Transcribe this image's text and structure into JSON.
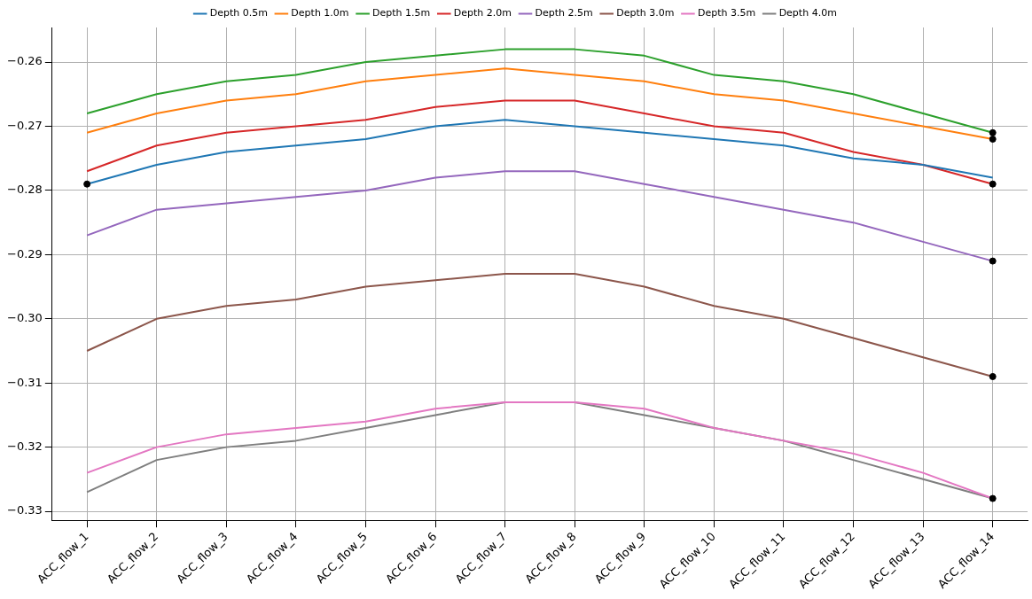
{
  "chart_data": {
    "type": "line",
    "categories": [
      "ACC_flow_1",
      "ACC_flow_2",
      "ACC_flow_3",
      "ACC_flow_4",
      "ACC_flow_5",
      "ACC_flow_6",
      "ACC_flow_7",
      "ACC_flow_8",
      "ACC_flow_9",
      "ACC_flow_10",
      "ACC_flow_11",
      "ACC_flow_12",
      "ACC_flow_13",
      "ACC_flow_14"
    ],
    "series": [
      {
        "name": "Depth 0.5m",
        "color": "#1f77b4",
        "values": [
          -0.279,
          -0.276,
          -0.274,
          -0.273,
          -0.272,
          -0.27,
          -0.269,
          -0.27,
          -0.271,
          -0.272,
          -0.273,
          -0.275,
          -0.276,
          -0.278
        ]
      },
      {
        "name": "Depth 1.0m",
        "color": "#ff7f0e",
        "values": [
          -0.271,
          -0.268,
          -0.266,
          -0.265,
          -0.263,
          -0.262,
          -0.261,
          -0.262,
          -0.263,
          -0.265,
          -0.266,
          -0.268,
          -0.27,
          -0.272
        ]
      },
      {
        "name": "Depth 1.5m",
        "color": "#2ca02c",
        "values": [
          -0.268,
          -0.265,
          -0.263,
          -0.262,
          -0.26,
          -0.259,
          -0.258,
          -0.258,
          -0.259,
          -0.262,
          -0.263,
          -0.265,
          -0.268,
          -0.271
        ]
      },
      {
        "name": "Depth 2.0m",
        "color": "#d62728",
        "values": [
          -0.277,
          -0.273,
          -0.271,
          -0.27,
          -0.269,
          -0.267,
          -0.266,
          -0.266,
          -0.268,
          -0.27,
          -0.271,
          -0.274,
          -0.276,
          -0.279
        ]
      },
      {
        "name": "Depth 2.5m",
        "color": "#9467bd",
        "values": [
          -0.287,
          -0.283,
          -0.282,
          -0.281,
          -0.28,
          -0.278,
          -0.277,
          -0.277,
          -0.279,
          -0.281,
          -0.283,
          -0.285,
          -0.288,
          -0.291
        ]
      },
      {
        "name": "Depth 3.0m",
        "color": "#8c564b",
        "values": [
          -0.305,
          -0.3,
          -0.298,
          -0.297,
          -0.295,
          -0.294,
          -0.293,
          -0.293,
          -0.295,
          -0.298,
          -0.3,
          -0.303,
          -0.306,
          -0.309
        ]
      },
      {
        "name": "Depth 3.5m",
        "color": "#e377c2",
        "values": [
          -0.324,
          -0.32,
          -0.318,
          -0.317,
          -0.316,
          -0.314,
          -0.313,
          -0.313,
          -0.314,
          -0.317,
          -0.319,
          -0.321,
          -0.324,
          -0.328
        ]
      },
      {
        "name": "Depth 4.0m",
        "color": "#7f7f7f",
        "values": [
          -0.327,
          -0.322,
          -0.32,
          -0.319,
          -0.317,
          -0.315,
          -0.313,
          -0.313,
          -0.315,
          -0.317,
          -0.319,
          -0.322,
          -0.325,
          -0.328
        ]
      },
      {
        "type": "scatter",
        "marker": "circle",
        "color": "#000000",
        "x": [
          "ACC_flow_1",
          "ACC_flow_14",
          "ACC_flow_14",
          "ACC_flow_14",
          "ACC_flow_14",
          "ACC_flow_14",
          "ACC_flow_14"
        ],
        "values": [
          -0.279,
          -0.271,
          -0.272,
          -0.279,
          -0.291,
          -0.309,
          -0.328
        ]
      }
    ],
    "ylim": [
      -0.3314,
      -0.2546
    ],
    "yticks": [
      {
        "value": -0.33,
        "label": "−0.33"
      },
      {
        "value": -0.32,
        "label": "−0.32"
      },
      {
        "value": -0.31,
        "label": "−0.31"
      },
      {
        "value": -0.3,
        "label": "−0.30"
      },
      {
        "value": -0.29,
        "label": "−0.29"
      },
      {
        "value": -0.28,
        "label": "−0.28"
      },
      {
        "value": -0.27,
        "label": "−0.27"
      },
      {
        "value": -0.26,
        "label": "−0.26"
      }
    ],
    "grid": true,
    "legend": "top",
    "marker": "none"
  }
}
